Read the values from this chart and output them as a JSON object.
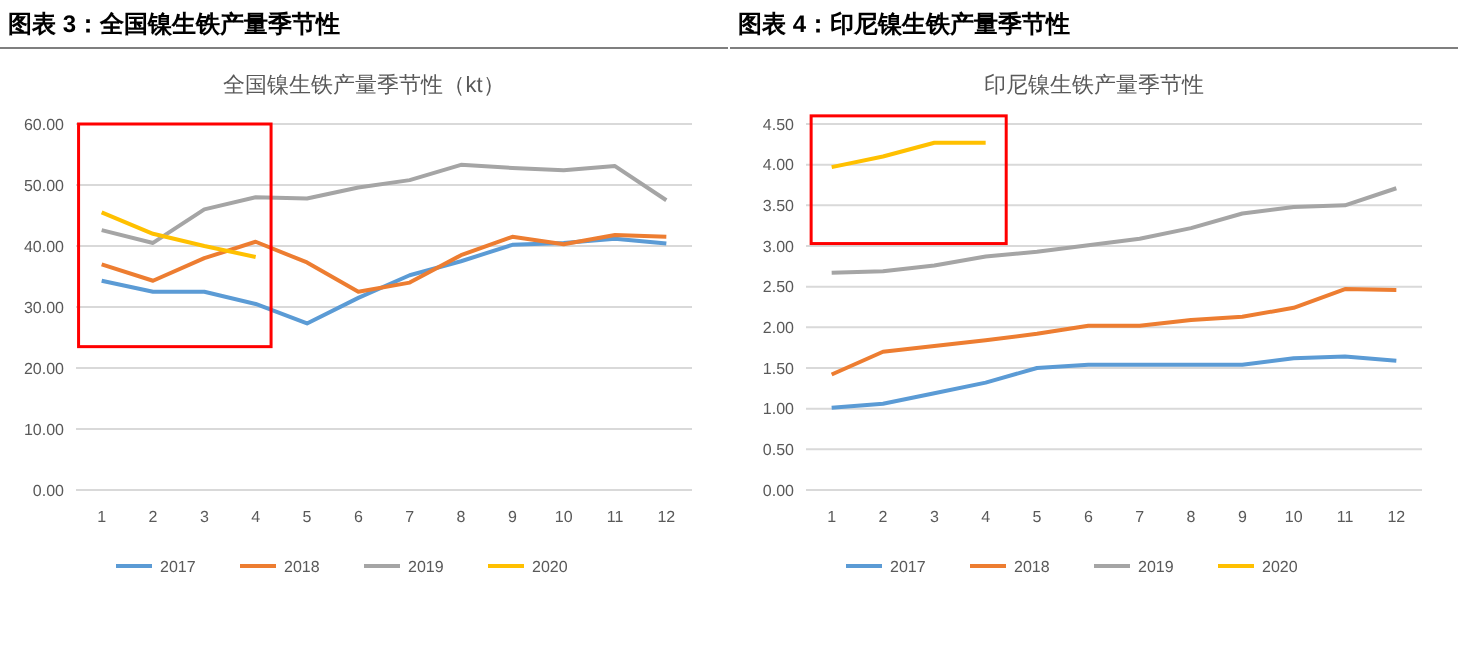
{
  "chart_data": [
    {
      "type": "line",
      "title": "图表 3：全国镍生铁产量季节性",
      "subtitle": "全国镍生铁产量季节性（kt）",
      "categories": [
        "1",
        "2",
        "3",
        "4",
        "5",
        "6",
        "7",
        "8",
        "9",
        "10",
        "11",
        "12"
      ],
      "ylim": [
        0,
        60
      ],
      "yticks": [
        {
          "value": 0,
          "label": "0.00"
        },
        {
          "value": 10,
          "label": "10.00"
        },
        {
          "value": 20,
          "label": "20.00"
        },
        {
          "value": 30,
          "label": "30.00"
        },
        {
          "value": 40,
          "label": "40.00"
        },
        {
          "value": 50,
          "label": "50.00"
        },
        {
          "value": 60,
          "label": "60.00"
        }
      ],
      "grid": "y",
      "legend": "bottom",
      "marker": "none",
      "series": [
        {
          "name": "2017",
          "color": "#5b9bd5",
          "values": [
            34.3,
            32.5,
            32.5,
            30.5,
            27.3,
            31.5,
            35.2,
            37.5,
            40.2,
            40.5,
            41.2,
            40.4
          ]
        },
        {
          "name": "2018",
          "color": "#ed7d31",
          "values": [
            37,
            34.3,
            38,
            40.7,
            37.3,
            32.5,
            34,
            38.5,
            41.5,
            40.3,
            41.8,
            41.5
          ]
        },
        {
          "name": "2019",
          "color": "#a5a5a5",
          "values": [
            42.6,
            40.5,
            46,
            48,
            47.8,
            49.6,
            50.8,
            53.3,
            52.8,
            52.4,
            53.1,
            47.5
          ]
        },
        {
          "name": "2020",
          "color": "#ffc000",
          "values": [
            45.5,
            42,
            40,
            38.2,
            null,
            null,
            null,
            null,
            null,
            null,
            null,
            null
          ]
        }
      ]
    },
    {
      "type": "line",
      "title": "图表 4：印尼镍生铁产量季节性",
      "subtitle": "印尼镍生铁产量季节性",
      "categories": [
        "1",
        "2",
        "3",
        "4",
        "5",
        "6",
        "7",
        "8",
        "9",
        "10",
        "11",
        "12"
      ],
      "ylim": [
        0,
        4.5
      ],
      "yticks": [
        {
          "value": 0,
          "label": "0.00"
        },
        {
          "value": 0.5,
          "label": "0.50"
        },
        {
          "value": 1,
          "label": "1.00"
        },
        {
          "value": 1.5,
          "label": "1.50"
        },
        {
          "value": 2,
          "label": "2.00"
        },
        {
          "value": 2.5,
          "label": "2.50"
        },
        {
          "value": 3,
          "label": "3.00"
        },
        {
          "value": 3.5,
          "label": "3.50"
        },
        {
          "value": 4,
          "label": "4.00"
        },
        {
          "value": 4.5,
          "label": "4.50"
        }
      ],
      "grid": "y",
      "legend": "bottom",
      "marker": "none",
      "series": [
        {
          "name": "2017",
          "color": "#5b9bd5",
          "values": [
            1.01,
            1.06,
            1.19,
            1.32,
            1.5,
            1.54,
            1.54,
            1.54,
            1.54,
            1.62,
            1.64,
            1.59
          ]
        },
        {
          "name": "2018",
          "color": "#ed7d31",
          "values": [
            1.42,
            1.7,
            1.77,
            1.84,
            1.92,
            2.02,
            2.02,
            2.09,
            2.13,
            2.24,
            2.47,
            2.46
          ]
        },
        {
          "name": "2019",
          "color": "#a5a5a5",
          "values": [
            2.67,
            2.69,
            2.76,
            2.87,
            2.93,
            3.01,
            3.09,
            3.22,
            3.4,
            3.48,
            3.5,
            3.71
          ]
        },
        {
          "name": "2020",
          "color": "#ffc000",
          "values": [
            3.97,
            4.1,
            4.27,
            4.27,
            null,
            null,
            null,
            null,
            null,
            null,
            null,
            null
          ]
        }
      ]
    }
  ]
}
